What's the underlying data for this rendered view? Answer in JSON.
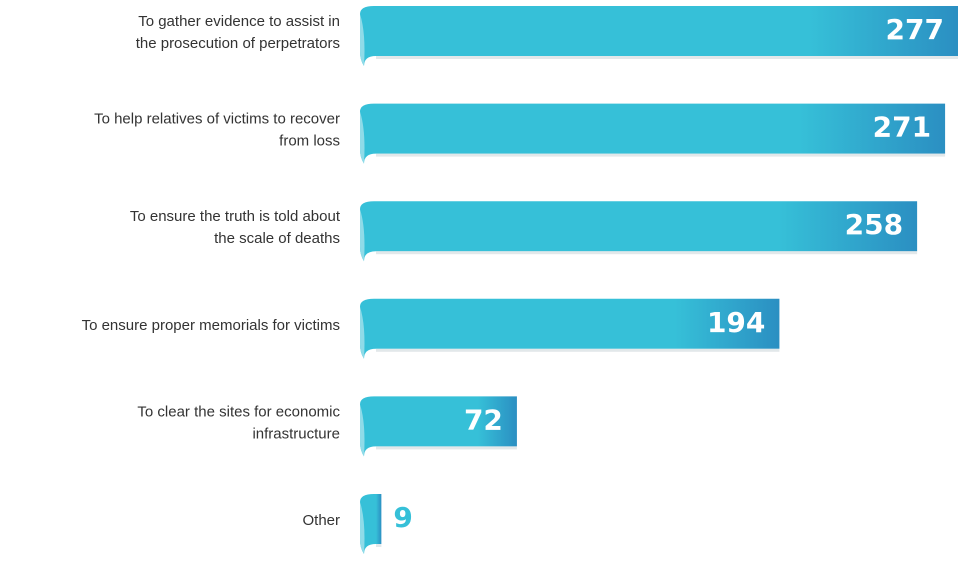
{
  "chart_data": {
    "type": "bar",
    "categories": [
      [
        "To gather evidence to assist in",
        "the prosecution of perpetrators"
      ],
      [
        "To help relatives of victims to recover",
        "from loss"
      ],
      [
        "To ensure the truth is told about",
        "the scale of deaths"
      ],
      [
        "To ensure proper memorials for victims"
      ],
      [
        "To clear the sites for economic",
        "infrastructure"
      ],
      [
        "Other"
      ]
    ],
    "values": [
      277,
      271,
      258,
      194,
      72,
      9
    ],
    "color": "#36c0d8"
  }
}
